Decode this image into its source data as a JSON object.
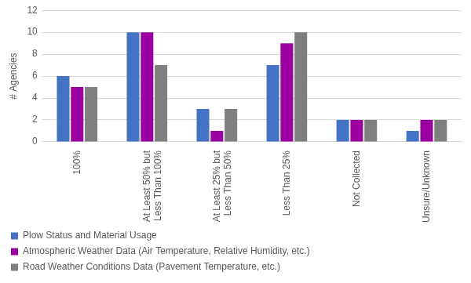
{
  "chart_data": {
    "type": "bar",
    "y_label": "# Agencies",
    "categories": [
      "100%",
      "At Least 50% but Less Than 100%",
      "At Least 25% but Less Than 50%",
      "Less Than 25%",
      "Not Collected",
      "Unsure/Unknown"
    ],
    "series": [
      {
        "name": "Plow Status and Material Usage",
        "color": "#4472c4",
        "values": [
          6,
          10,
          3,
          7,
          2,
          1
        ]
      },
      {
        "name": "Atmospheric Weather Data (Air Temperature, Relative Humidity, etc.)",
        "color": "#9b00a3",
        "values": [
          5,
          10,
          1,
          9,
          2,
          2
        ]
      },
      {
        "name": "Road Weather Conditions Data (Pavement Temperature, etc.)",
        "color": "#7f7f7f",
        "values": [
          5,
          7,
          3,
          10,
          2,
          2
        ]
      }
    ],
    "ylim": [
      0,
      12
    ],
    "yticks": [
      0,
      2,
      4,
      6,
      8,
      10,
      12
    ],
    "grid": true,
    "legend": "bottom"
  }
}
